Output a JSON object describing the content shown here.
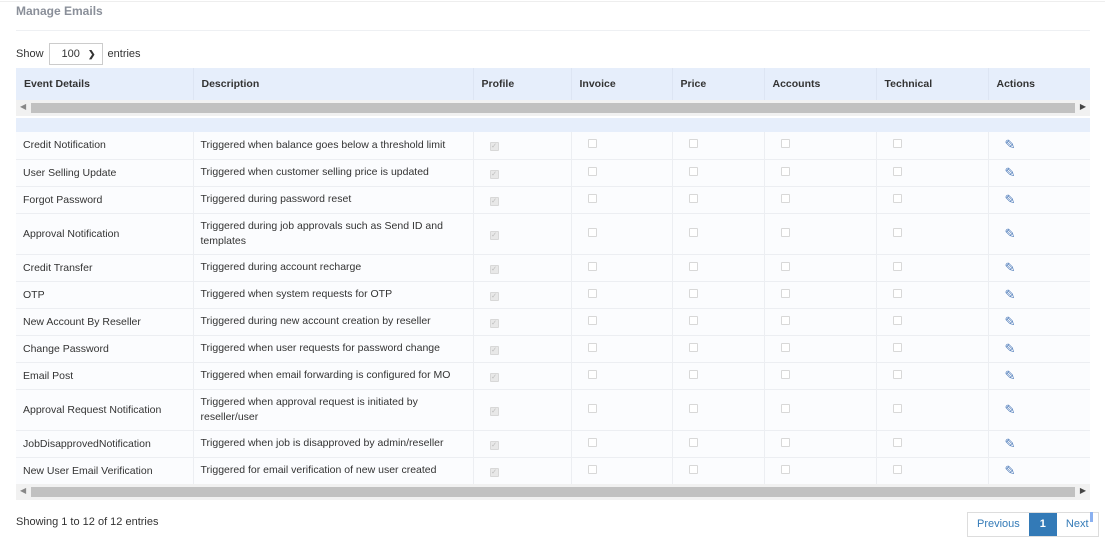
{
  "page": {
    "title": "Manage Emails"
  },
  "length": {
    "show": "Show",
    "value": "100",
    "entries": "entries"
  },
  "columns": [
    "Event Details",
    "Description",
    "Profile",
    "Invoice",
    "Price",
    "Accounts",
    "Technical",
    "Actions"
  ],
  "rows": [
    {
      "event": "Credit Notification",
      "description": "Triggered when balance goes below a threshold limit",
      "profile": true,
      "invoice": false,
      "price": false,
      "accounts": false,
      "technical": false
    },
    {
      "event": "User Selling Update",
      "description": "Triggered when customer selling price is updated",
      "profile": true,
      "invoice": false,
      "price": false,
      "accounts": false,
      "technical": false
    },
    {
      "event": "Forgot Password",
      "description": "Triggered during password reset",
      "profile": true,
      "invoice": false,
      "price": false,
      "accounts": false,
      "technical": false
    },
    {
      "event": "Approval Notification",
      "description": "Triggered during job approvals such as Send ID and templates",
      "profile": true,
      "invoice": false,
      "price": false,
      "accounts": false,
      "technical": false
    },
    {
      "event": "Credit Transfer",
      "description": "Triggered during account recharge",
      "profile": true,
      "invoice": false,
      "price": false,
      "accounts": false,
      "technical": false
    },
    {
      "event": "OTP",
      "description": "Triggered when system requests for OTP",
      "profile": true,
      "invoice": false,
      "price": false,
      "accounts": false,
      "technical": false
    },
    {
      "event": "New Account By Reseller",
      "description": "Triggered during new account creation by reseller",
      "profile": true,
      "invoice": false,
      "price": false,
      "accounts": false,
      "technical": false
    },
    {
      "event": "Change Password",
      "description": "Triggered when user requests for password change",
      "profile": true,
      "invoice": false,
      "price": false,
      "accounts": false,
      "technical": false
    },
    {
      "event": "Email Post",
      "description": "Triggered when email forwarding is configured for MO",
      "profile": true,
      "invoice": false,
      "price": false,
      "accounts": false,
      "technical": false
    },
    {
      "event": "Approval Request Notification",
      "description": "Triggered when approval request is initiated by reseller/user",
      "profile": true,
      "invoice": false,
      "price": false,
      "accounts": false,
      "technical": false
    },
    {
      "event": "JobDisapprovedNotification",
      "description": "Triggered when job is disapproved by admin/reseller",
      "profile": true,
      "invoice": false,
      "price": false,
      "accounts": false,
      "technical": false
    },
    {
      "event": "New User Email Verification",
      "description": "Triggered for email verification of new user created",
      "profile": true,
      "invoice": false,
      "price": false,
      "accounts": false,
      "technical": false
    }
  ],
  "footer": {
    "info": "Showing 1 to 12 of 12 entries",
    "previous": "Previous",
    "current": "1",
    "next": "Next"
  },
  "colors": {
    "header_bg": "#e6eefb",
    "accent": "#337ab7",
    "edit_icon": "#4a78b8"
  },
  "icons": {
    "edit": "pencil-icon",
    "dropdown": "chevron-down-icon"
  }
}
